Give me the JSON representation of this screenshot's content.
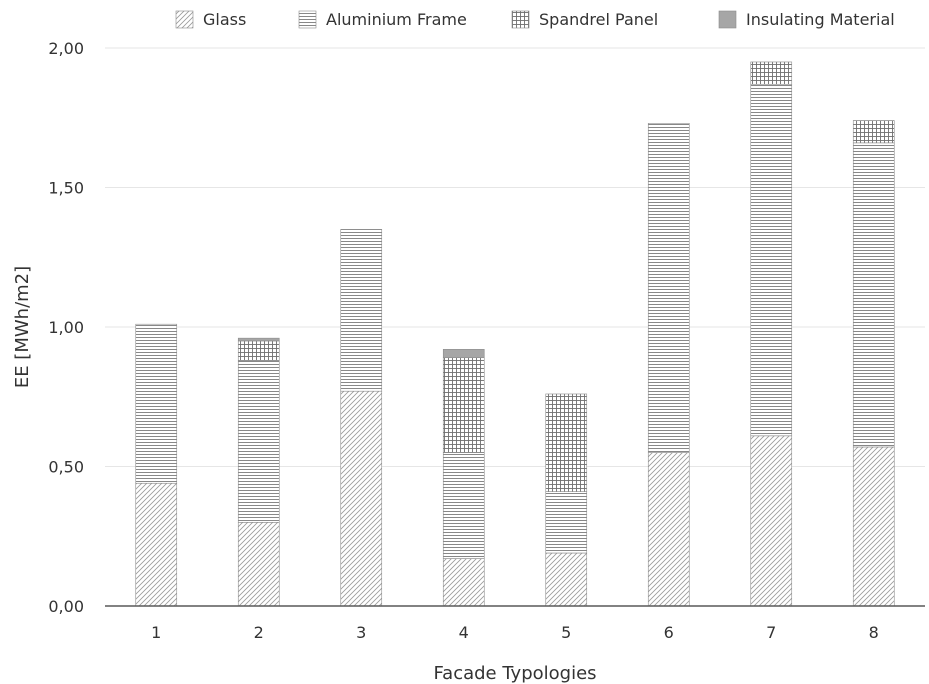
{
  "chart_data": {
    "type": "bar",
    "stacked": true,
    "categories": [
      "1",
      "2",
      "3",
      "4",
      "5",
      "6",
      "7",
      "8"
    ],
    "series": [
      {
        "name": "Glass",
        "pattern": "diagonal-hatch",
        "values": [
          0.44,
          0.3,
          0.77,
          0.17,
          0.19,
          0.55,
          0.61,
          0.57
        ]
      },
      {
        "name": "Aluminium Frame",
        "pattern": "horizontal-lines",
        "values": [
          0.57,
          0.58,
          0.58,
          0.38,
          0.22,
          1.18,
          1.26,
          1.09
        ]
      },
      {
        "name": "Spandrel Panel",
        "pattern": "grid",
        "values": [
          0.0,
          0.07,
          0.0,
          0.34,
          0.35,
          0.0,
          0.08,
          0.08
        ]
      },
      {
        "name": "Insulating Material",
        "pattern": "solid",
        "values": [
          0.0,
          0.01,
          0.0,
          0.03,
          0.0,
          0.0,
          0.0,
          0.0
        ]
      }
    ],
    "title": "",
    "xlabel": "Facade Typologies",
    "ylabel": "EE [MWh/m2]",
    "ylim": [
      0,
      2.0
    ],
    "yticks": [
      "0,00",
      "0,50",
      "1,00",
      "1,50",
      "2,00"
    ],
    "ytick_values": [
      0,
      0.5,
      1.0,
      1.5,
      2.0
    ],
    "grid": true,
    "legend_position": "top",
    "colors": {
      "pattern_stroke": "#8c8c8c",
      "solid_fill": "#a6a6a6",
      "grid": "#e6e6e6",
      "axis": "#595959",
      "text": "#333333"
    }
  }
}
